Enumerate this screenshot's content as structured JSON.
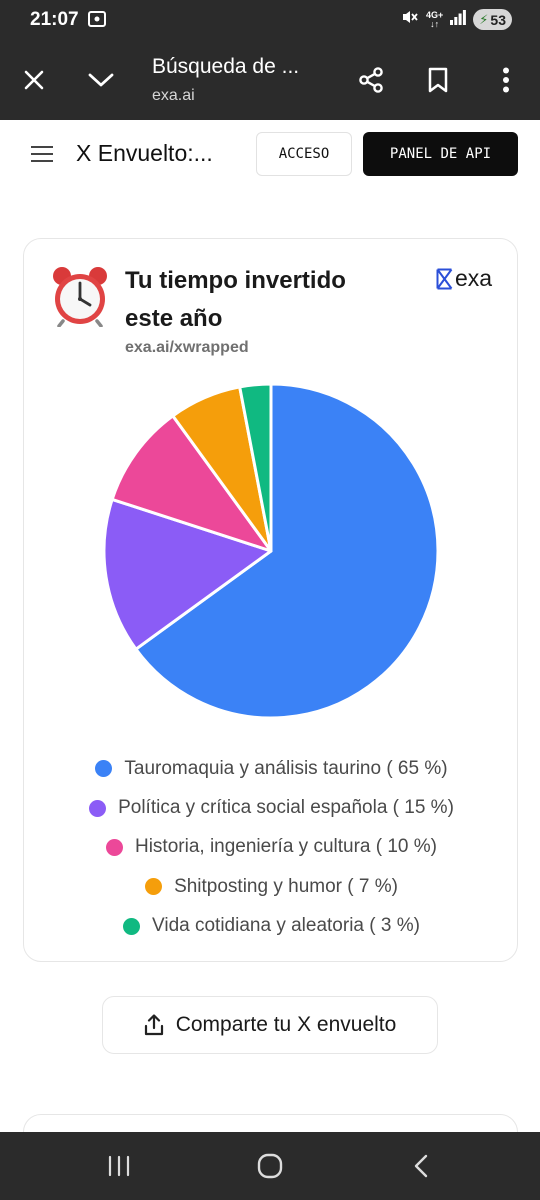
{
  "status_bar": {
    "time": "21:07",
    "network_top": "4G+",
    "network_bottom": "↓↑",
    "battery": "53"
  },
  "browser": {
    "title": "Búsqueda de ...",
    "url": "exa.ai",
    "icons": [
      "close-icon",
      "chevron-down-icon",
      "share-icon",
      "bookmark-icon",
      "more-vert-icon"
    ]
  },
  "site": {
    "title": "X Envuelto:...",
    "login_label": "ACCESO",
    "api_label": "PANEL DE API"
  },
  "card": {
    "title": "Tu tiempo invertido este año",
    "subtitle": "exa.ai/xwrapped",
    "logo_text": "exa",
    "icon": "alarm-clock-icon"
  },
  "chart_data": {
    "type": "pie",
    "slices": [
      {
        "label": "Tauromaquia y análisis taurino ( 65 %)",
        "value": 65,
        "color": "#3b82f6"
      },
      {
        "label": "Política y crítica social española ( 15 %)",
        "value": 15,
        "color": "#8b5cf6"
      },
      {
        "label": "Historia, ingeniería y cultura ( 10 %)",
        "value": 10,
        "color": "#ec4899"
      },
      {
        "label": "Shitposting y humor ( 7 %)",
        "value": 7,
        "color": "#f59e0b"
      },
      {
        "label": "Vida cotidiana y aleatoria ( 3 %)",
        "value": 3,
        "color": "#10b981"
      }
    ],
    "legend_position": "bottom"
  },
  "share": {
    "label": "Comparte tu X envuelto",
    "icon": "upload-share-icon"
  },
  "navbar": {
    "icons": [
      "recents-icon",
      "home-icon",
      "back-icon"
    ]
  }
}
